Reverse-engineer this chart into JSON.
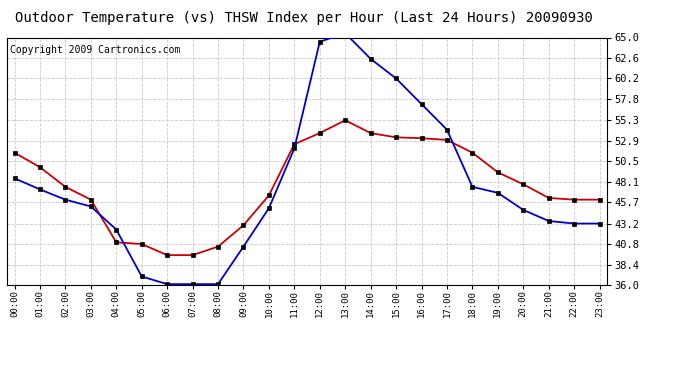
{
  "title": "Outdoor Temperature (vs) THSW Index per Hour (Last 24 Hours) 20090930",
  "copyright": "Copyright 2009 Cartronics.com",
  "hours": [
    0,
    1,
    2,
    3,
    4,
    5,
    6,
    7,
    8,
    9,
    10,
    11,
    12,
    13,
    14,
    15,
    16,
    17,
    18,
    19,
    20,
    21,
    22,
    23
  ],
  "hour_labels": [
    "00:00",
    "01:00",
    "02:00",
    "03:00",
    "04:00",
    "05:00",
    "06:00",
    "07:00",
    "08:00",
    "09:00",
    "10:00",
    "11:00",
    "12:00",
    "13:00",
    "14:00",
    "15:00",
    "16:00",
    "17:00",
    "18:00",
    "19:00",
    "20:00",
    "21:00",
    "22:00",
    "23:00"
  ],
  "blue_thsw": [
    48.5,
    47.2,
    46.0,
    45.2,
    42.5,
    37.0,
    36.1,
    36.1,
    36.1,
    40.5,
    45.0,
    52.0,
    64.5,
    65.5,
    62.5,
    60.2,
    57.2,
    54.2,
    47.5,
    46.8,
    44.8,
    43.5,
    43.2,
    43.2
  ],
  "red_temp": [
    51.5,
    49.8,
    47.5,
    46.0,
    41.0,
    40.8,
    39.5,
    39.5,
    40.5,
    43.0,
    46.5,
    52.5,
    53.8,
    55.3,
    53.8,
    53.3,
    53.2,
    53.0,
    51.5,
    49.2,
    47.8,
    46.2,
    46.0,
    46.0
  ],
  "ylim_min": 36.0,
  "ylim_max": 65.0,
  "yticks": [
    36.0,
    38.4,
    40.8,
    43.2,
    45.7,
    48.1,
    50.5,
    52.9,
    55.3,
    57.8,
    60.2,
    62.6,
    65.0
  ],
  "blue_color": "#0000cc",
  "red_color": "#cc0000",
  "grid_color": "#bbbbbb",
  "bg_color": "#ffffff",
  "title_fontsize": 10,
  "copyright_fontsize": 7
}
